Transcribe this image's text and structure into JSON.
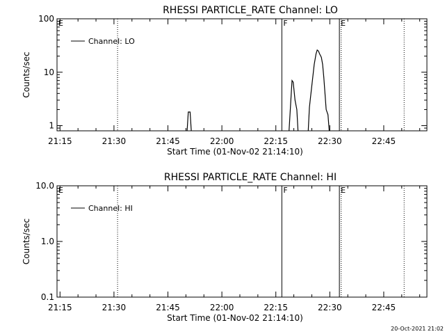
{
  "footer": {
    "timestamp": "20-Oct-2021 21:02"
  },
  "chart_data": [
    {
      "type": "line",
      "title": "RHESSI PARTICLE_RATE Channel: LO",
      "xlabel": "Start Time (01-Nov-02 21:14:10)",
      "ylabel": "Counts/sec",
      "yscale": "log",
      "ylim": [
        0.8,
        100
      ],
      "xlim": [
        "21:14:10",
        "22:57:00"
      ],
      "x_ticks": [
        "21:15",
        "21:30",
        "21:45",
        "22:00",
        "22:15",
        "22:30",
        "22:45"
      ],
      "y_ticks": [
        "1",
        "10",
        "100"
      ],
      "legend": {
        "placement": "top-left",
        "entries": [
          "Channel: LO"
        ]
      },
      "markers": [
        {
          "label": "E",
          "time": "21:14:10",
          "style": "solid"
        },
        {
          "label": "F",
          "time": "22:16:40",
          "style": "solid"
        },
        {
          "label": "E",
          "time": "22:32:40",
          "style": "solid"
        }
      ],
      "dotted_lines": [
        "21:31:00",
        "22:33:10",
        "22:50:40"
      ],
      "series": [
        {
          "name": "Channel: LO",
          "segments": [
            [
              [
                "21:50:20",
                0.8
              ],
              [
                "21:50:40",
                1.8
              ],
              [
                "21:51:10",
                1.8
              ],
              [
                "21:51:30",
                0.8
              ]
            ],
            [
              [
                "22:18:40",
                0.8
              ],
              [
                "22:19:10",
                3
              ],
              [
                "22:19:30",
                7
              ],
              [
                "22:19:50",
                6.5
              ],
              [
                "22:20:20",
                3
              ],
              [
                "22:20:50",
                2
              ],
              [
                "22:21:10",
                0.8
              ]
            ],
            [
              [
                "22:24:00",
                0.8
              ],
              [
                "22:24:20",
                2.2
              ],
              [
                "22:24:40",
                3.5
              ],
              [
                "22:25:10",
                7
              ],
              [
                "22:25:40",
                14
              ],
              [
                "22:26:10",
                22
              ],
              [
                "22:26:30",
                26
              ],
              [
                "22:26:50",
                25
              ],
              [
                "22:27:10",
                22
              ],
              [
                "22:27:40",
                19
              ],
              [
                "22:28:00",
                14
              ],
              [
                "22:28:20",
                8
              ],
              [
                "22:28:40",
                4
              ],
              [
                "22:29:00",
                2
              ],
              [
                "22:29:30",
                1.6
              ],
              [
                "22:29:50",
                0.8
              ]
            ]
          ]
        }
      ]
    },
    {
      "type": "line",
      "title": "RHESSI PARTICLE_RATE Channel: HI",
      "xlabel": "Start Time (01-Nov-02 21:14:10)",
      "ylabel": "Counts/sec",
      "yscale": "log",
      "ylim": [
        0.1,
        10
      ],
      "xlim": [
        "21:14:10",
        "22:57:00"
      ],
      "x_ticks": [
        "21:15",
        "21:30",
        "21:45",
        "22:00",
        "22:15",
        "22:30",
        "22:45"
      ],
      "y_ticks": [
        "0.1",
        "1.0",
        "10.0"
      ],
      "legend": {
        "placement": "top-left",
        "entries": [
          "Channel: HI"
        ]
      },
      "markers": [
        {
          "label": "E",
          "time": "21:14:10",
          "style": "solid"
        },
        {
          "label": "F",
          "time": "22:16:40",
          "style": "solid"
        },
        {
          "label": "E",
          "time": "22:32:40",
          "style": "solid"
        }
      ],
      "dotted_lines": [
        "21:31:00",
        "22:33:10",
        "22:50:40"
      ],
      "series": [
        {
          "name": "Channel: HI",
          "segments": []
        }
      ]
    }
  ]
}
